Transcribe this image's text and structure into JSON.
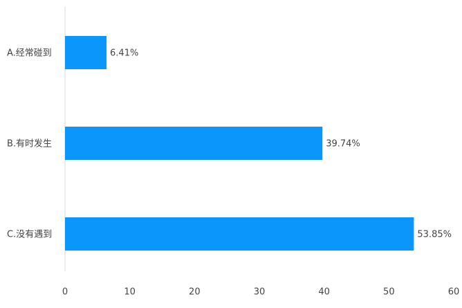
{
  "chart_data": {
    "type": "bar",
    "orientation": "horizontal",
    "categories": [
      "A.经常碰到",
      "B.有时发生",
      "C.没有遇到"
    ],
    "values": [
      6.41,
      39.74,
      53.85
    ],
    "value_labels": [
      "6.41%",
      "39.74%",
      "53.85%"
    ],
    "color": "#0a96fa",
    "xlim": [
      0,
      60
    ],
    "xticks": [
      0,
      10,
      20,
      30,
      40,
      50,
      60
    ],
    "grid": false
  }
}
